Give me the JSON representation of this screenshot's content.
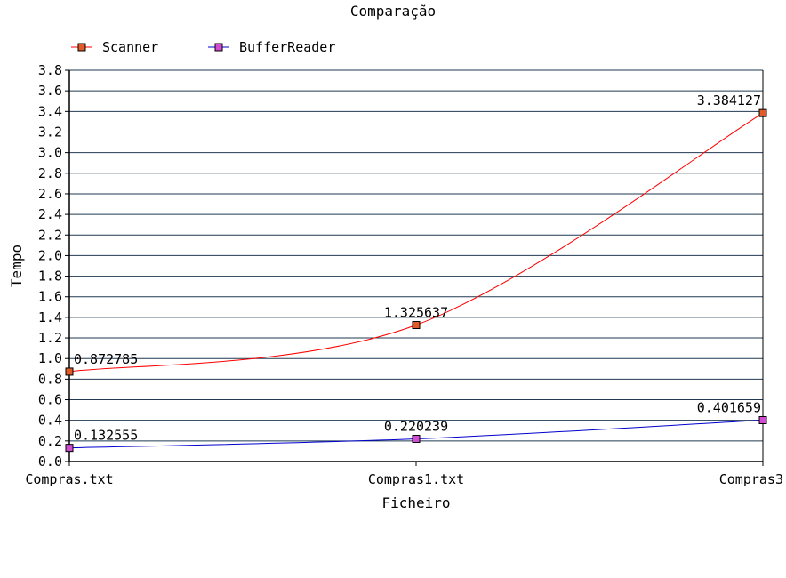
{
  "chart_data": {
    "type": "line",
    "title": "Comparação",
    "xlabel": "Ficheiro",
    "ylabel": "Tempo",
    "categories": [
      "Compras.txt",
      "Compras1.txt",
      "Compras3"
    ],
    "ylim": [
      0,
      3.8
    ],
    "yticks": [
      "0.0",
      "0.2",
      "0.4",
      "0.6",
      "0.8",
      "1.0",
      "1.2",
      "1.4",
      "1.6",
      "1.8",
      "2.0",
      "2.2",
      "2.4",
      "2.6",
      "2.8",
      "3.0",
      "3.2",
      "3.4",
      "3.6",
      "3.8"
    ],
    "grid": true,
    "legend_position": "top-left",
    "series": [
      {
        "name": "Scanner",
        "values": [
          0.872785,
          1.325637,
          3.384127
        ],
        "labels": [
          "0.872785",
          "1.325637",
          "3.384127"
        ],
        "color": "#ff0000",
        "marker_color": "#e05a2a"
      },
      {
        "name": "BufferReader",
        "values": [
          0.132555,
          0.220239,
          0.401659
        ],
        "labels": [
          "0.132555",
          "0.220239",
          "0.401659"
        ],
        "color": "#0000cc",
        "marker_color": "#d24cd2"
      }
    ]
  }
}
